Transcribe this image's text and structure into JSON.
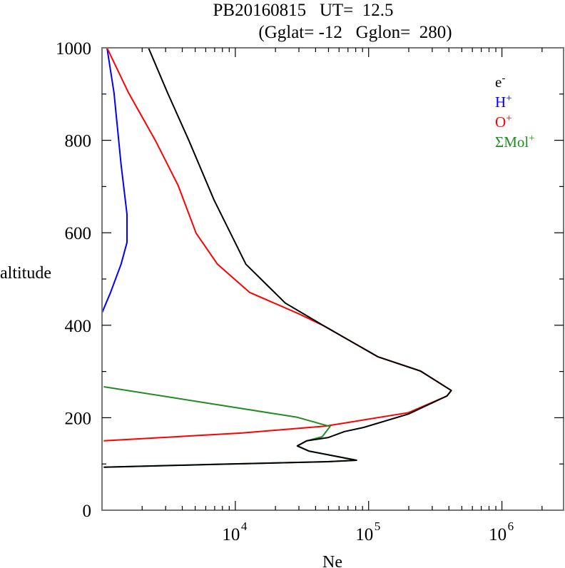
{
  "chart_data": {
    "type": "line",
    "title_line1": "PB20160815   UT=  12.5",
    "title_line2": "(Gglat= -12   Gglon=  280)",
    "xlabel": "Ne",
    "ylabel": "altitude",
    "xscale": "log",
    "xlim": [
      1000,
      2900000
    ],
    "ylim": [
      0,
      1000
    ],
    "x_tick_labels": [
      {
        "base": "10",
        "exp": "4",
        "value": 10000
      },
      {
        "base": "10",
        "exp": "5",
        "value": 100000
      },
      {
        "base": "10",
        "exp": "6",
        "value": 1000000
      }
    ],
    "y_ticks": [
      "0",
      "200",
      "400",
      "600",
      "800",
      "1000"
    ],
    "legend_placement": "top-right",
    "series": [
      {
        "name": "e",
        "sup": "-",
        "color": "#000000",
        "points": [
          [
            2230,
            1000
          ],
          [
            3100,
            903
          ],
          [
            4490,
            799
          ],
          [
            6920,
            671
          ],
          [
            12000,
            532
          ],
          [
            23700,
            448
          ],
          [
            46600,
            398
          ],
          [
            117000,
            332
          ],
          [
            245000,
            301
          ],
          [
            417000,
            259
          ],
          [
            387000,
            247
          ],
          [
            199000,
            208
          ],
          [
            91800,
            179
          ],
          [
            65800,
            170
          ],
          [
            49500,
            157
          ],
          [
            34300,
            150
          ],
          [
            29200,
            139
          ],
          [
            35600,
            128
          ],
          [
            81100,
            108
          ],
          [
            49500,
            105
          ],
          [
            6920,
            99
          ],
          [
            1030,
            93
          ]
        ]
      },
      {
        "name": "H",
        "sup": "+",
        "color": "#0000ff",
        "points": [
          [
            1090,
            1000
          ],
          [
            1230,
            903
          ],
          [
            1390,
            748
          ],
          [
            1540,
            640
          ],
          [
            1540,
            579
          ],
          [
            1390,
            532
          ],
          [
            1160,
            471
          ],
          [
            1000,
            427
          ]
        ]
      },
      {
        "name": "O",
        "sup": "+",
        "color": "#ff0000",
        "points": [
          [
            1090,
            1000
          ],
          [
            1580,
            903
          ],
          [
            2520,
            799
          ],
          [
            3730,
            702
          ],
          [
            5080,
            599
          ],
          [
            7350,
            532
          ],
          [
            12800,
            471
          ],
          [
            30300,
            424
          ],
          [
            46600,
            398
          ],
          [
            117000,
            332
          ],
          [
            245000,
            301
          ],
          [
            417000,
            259
          ],
          [
            387000,
            247
          ],
          [
            199000,
            211
          ],
          [
            47800,
            182
          ],
          [
            11300,
            167
          ],
          [
            1030,
            150
          ]
        ]
      },
      {
        "name": "ΣMol",
        "sup": "+",
        "color": "#228b22",
        "points": [
          [
            1030,
            267
          ],
          [
            29200,
            201
          ],
          [
            51400,
            181
          ],
          [
            44900,
            159
          ],
          [
            34300,
            150
          ],
          [
            29200,
            139
          ],
          [
            35600,
            128
          ],
          [
            81100,
            108
          ],
          [
            49500,
            105
          ],
          [
            1030,
            93
          ]
        ]
      }
    ]
  }
}
